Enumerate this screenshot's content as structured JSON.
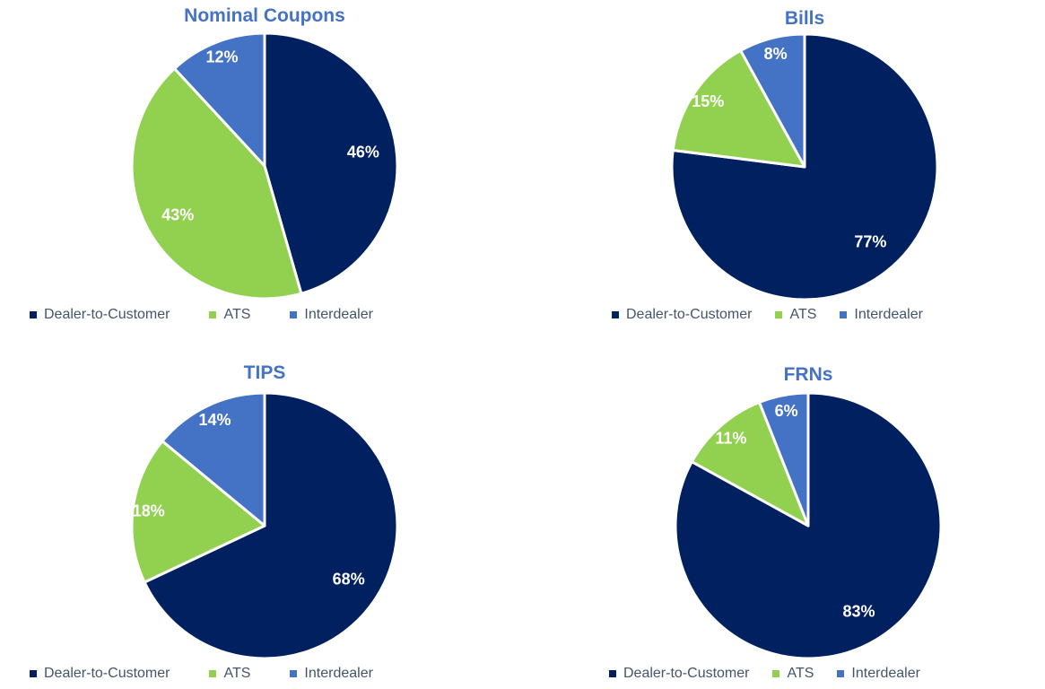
{
  "palette": {
    "dealer_to_customer": "#002060",
    "ats": "#92D050",
    "interdealer": "#4472C4",
    "title_color": "#4472C4",
    "legend_text_color": "#44546A",
    "slice_label_color": "#FFFFFF",
    "slice_separator_color": "#FFFFFF"
  },
  "chart_data": [
    {
      "type": "pie",
      "title": "Nominal Coupons",
      "labels": [
        "Dealer-to-Customer",
        "ATS",
        "Interdealer"
      ],
      "values": [
        46,
        43,
        12
      ],
      "value_labels": [
        "46%",
        "43%",
        "12%"
      ],
      "colors": [
        "#002060",
        "#92D050",
        "#4472C4"
      ],
      "start_angle_deg": 0,
      "direction": "clockwise",
      "legend_position": "bottom"
    },
    {
      "type": "pie",
      "title": "Bills",
      "labels": [
        "Dealer-to-Customer",
        "ATS",
        "Interdealer"
      ],
      "values": [
        77,
        15,
        8
      ],
      "value_labels": [
        "77%",
        "15%",
        "8%"
      ],
      "colors": [
        "#002060",
        "#92D050",
        "#4472C4"
      ],
      "start_angle_deg": 0,
      "direction": "clockwise",
      "legend_position": "bottom"
    },
    {
      "type": "pie",
      "title": "TIPS",
      "labels": [
        "Dealer-to-Customer",
        "ATS",
        "Interdealer"
      ],
      "values": [
        68,
        18,
        14
      ],
      "value_labels": [
        "68%",
        "18%",
        "14%"
      ],
      "colors": [
        "#002060",
        "#92D050",
        "#4472C4"
      ],
      "start_angle_deg": 0,
      "direction": "clockwise",
      "legend_position": "bottom"
    },
    {
      "type": "pie",
      "title": "FRNs",
      "labels": [
        "Dealer-to-Customer",
        "ATS",
        "Interdealer"
      ],
      "values": [
        83,
        11,
        6
      ],
      "value_labels": [
        "83%",
        "11%",
        "6%"
      ],
      "colors": [
        "#002060",
        "#92D050",
        "#4472C4"
      ],
      "start_angle_deg": 0,
      "direction": "clockwise",
      "legend_position": "bottom"
    }
  ]
}
